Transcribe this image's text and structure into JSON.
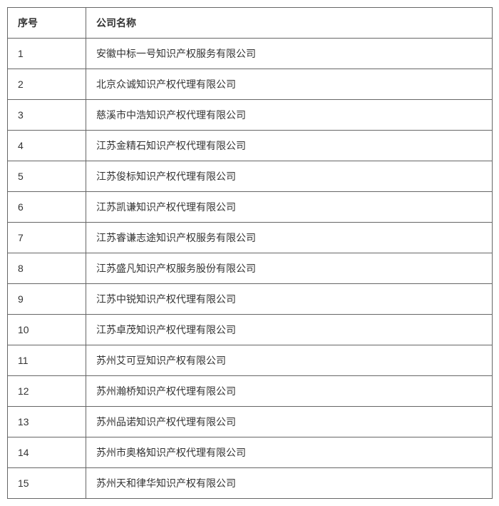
{
  "table": {
    "columns": {
      "seq": "序号",
      "name": "公司名称"
    },
    "rows": [
      {
        "seq": "1",
        "name": "安徽中标一号知识产权服务有限公司"
      },
      {
        "seq": "2",
        "name": "北京众诚知识产权代理有限公司"
      },
      {
        "seq": "3",
        "name": "慈溪市中浩知识产权代理有限公司"
      },
      {
        "seq": "4",
        "name": "江苏金精石知识产权代理有限公司"
      },
      {
        "seq": "5",
        "name": "江苏俊标知识产权代理有限公司"
      },
      {
        "seq": "6",
        "name": "江苏凯谦知识产权代理有限公司"
      },
      {
        "seq": "7",
        "name": "江苏睿谦志途知识产权服务有限公司"
      },
      {
        "seq": "8",
        "name": "江苏盛凡知识产权服务股份有限公司"
      },
      {
        "seq": "9",
        "name": "江苏中锐知识产权代理有限公司"
      },
      {
        "seq": "10",
        "name": "江苏卓茂知识产权代理有限公司"
      },
      {
        "seq": "11",
        "name": "苏州艾可豆知识产权有限公司"
      },
      {
        "seq": "12",
        "name": "苏州瀚桥知识产权代理有限公司"
      },
      {
        "seq": "13",
        "name": "苏州品诺知识产权代理有限公司"
      },
      {
        "seq": "14",
        "name": "苏州市奥格知识产权代理有限公司"
      },
      {
        "seq": "15",
        "name": "苏州天和律华知识产权有限公司"
      }
    ]
  }
}
